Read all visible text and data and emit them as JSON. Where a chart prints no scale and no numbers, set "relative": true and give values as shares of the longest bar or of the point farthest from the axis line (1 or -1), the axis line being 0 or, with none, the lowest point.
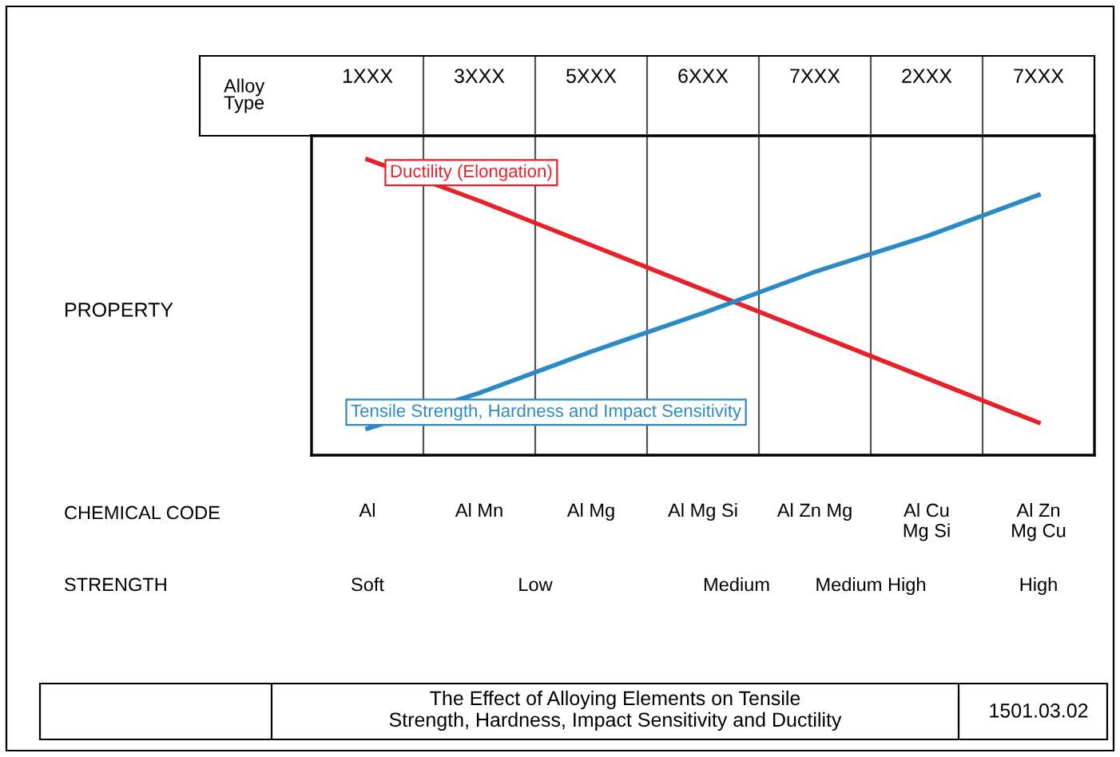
{
  "chart_data": {
    "type": "line",
    "relative": true,
    "title": "The Effect of Alloying Elements on Tensile\nStrength, Hardness, Impact Sensitivity and Ductility",
    "categories": [
      "1XXX",
      "3XXX",
      "5XXX",
      "6XXX",
      "7XXX",
      "2XXX",
      "7XXX"
    ],
    "series": [
      {
        "name": "Ductility (Elongation)",
        "color": "#e8202a",
        "values": [
          1,
          0.86,
          0.71,
          0.56,
          0.41,
          0.26,
          0.11
        ]
      },
      {
        "name": "Tensile Strength, Hardness and Impact Sensitivity",
        "color": "#2a8ac8",
        "values": [
          0.09,
          0.21,
          0.35,
          0.48,
          0.62,
          0.74,
          0.88
        ]
      }
    ],
    "grid": "x",
    "legend": false,
    "marker": "none",
    "line_style": "solid",
    "annotations": [
      "PROPERTY",
      "Alloy Type",
      "CHEMICAL CODE",
      "Al",
      "Al Mn",
      "Al Mg",
      "Al Mg Si",
      "Al Zn Mg",
      "Al Cu\nMg Si",
      "Al Zn\nMg Cu",
      "STRENGTH",
      "Soft",
      "Low",
      "Medium",
      "Medium High",
      "High",
      "1501.03.02"
    ]
  }
}
